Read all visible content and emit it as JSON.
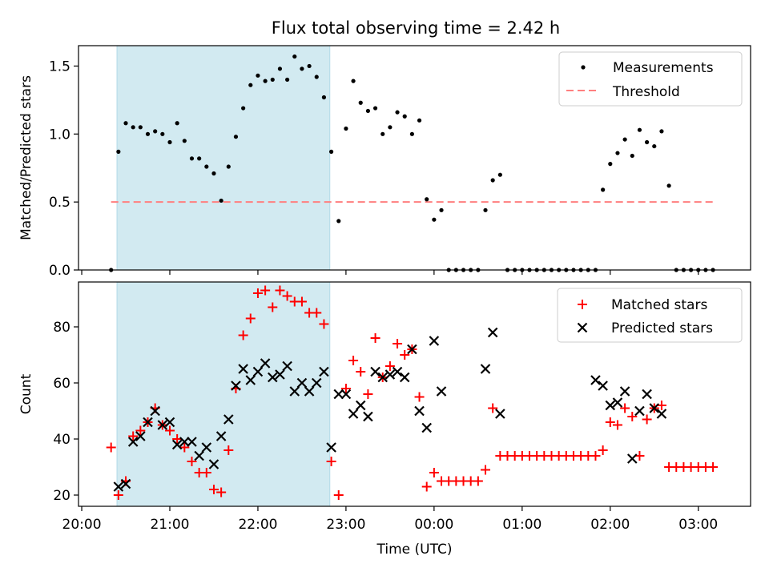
{
  "title": "Flux total observing time = 2.42 h",
  "xlabel": "Time (UTC)",
  "x_ticks": [
    "20:00",
    "21:00",
    "22:00",
    "23:00",
    "00:00",
    "01:00",
    "02:00",
    "03:00"
  ],
  "shaded_interval": {
    "start": "20:24",
    "end": "22:49",
    "color": "#add8e6"
  },
  "colors": {
    "measurements": "#000000",
    "threshold": "#ff7f7f",
    "matched": "#ff0000",
    "predicted": "#000000"
  },
  "chart_data": [
    {
      "type": "scatter",
      "ylabel": "Matched/Predicted stars",
      "ylim": [
        0,
        1.65
      ],
      "y_ticks": [
        "0.0",
        "0.5",
        "1.0",
        "1.5"
      ],
      "legend_position": "top-right",
      "series": [
        {
          "name": "Measurements",
          "x": [
            "20:20",
            "20:25",
            "20:30",
            "20:35",
            "20:40",
            "20:45",
            "20:50",
            "20:55",
            "21:00",
            "21:05",
            "21:10",
            "21:15",
            "21:20",
            "21:25",
            "21:30",
            "21:35",
            "21:40",
            "21:45",
            "21:50",
            "21:55",
            "22:00",
            "22:05",
            "22:10",
            "22:15",
            "22:20",
            "22:25",
            "22:30",
            "22:35",
            "22:40",
            "22:45",
            "22:50",
            "22:55",
            "23:00",
            "23:05",
            "23:10",
            "23:15",
            "23:20",
            "23:25",
            "23:30",
            "23:35",
            "23:40",
            "23:45",
            "23:50",
            "23:55",
            "00:00",
            "00:05",
            "00:10",
            "00:15",
            "00:20",
            "00:25",
            "00:30",
            "00:35",
            "00:40",
            "00:45",
            "00:50",
            "00:55",
            "01:00",
            "01:05",
            "01:10",
            "01:15",
            "01:20",
            "01:25",
            "01:30",
            "01:35",
            "01:40",
            "01:45",
            "01:50",
            "01:55",
            "02:00",
            "02:05",
            "02:10",
            "02:15",
            "02:20",
            "02:25",
            "02:30",
            "02:35",
            "02:40",
            "02:45",
            "02:50",
            "02:55",
            "03:00",
            "03:05",
            "03:10"
          ],
          "y": [
            0.0,
            0.87,
            1.08,
            1.05,
            1.05,
            1.0,
            1.02,
            1.0,
            0.94,
            1.08,
            0.95,
            0.82,
            0.82,
            0.76,
            0.71,
            0.51,
            0.76,
            0.98,
            1.19,
            1.36,
            1.43,
            1.39,
            1.4,
            1.48,
            1.4,
            1.57,
            1.48,
            1.5,
            1.42,
            1.27,
            0.87,
            0.36,
            1.04,
            1.39,
            1.23,
            1.17,
            1.19,
            1.0,
            1.05,
            1.16,
            1.13,
            1.0,
            1.1,
            0.52,
            0.37,
            0.44,
            0.0,
            0.0,
            0.0,
            0.0,
            0.0,
            0.44,
            0.66,
            0.7,
            0.0,
            0.0,
            0.0,
            0.0,
            0.0,
            0.0,
            0.0,
            0.0,
            0.0,
            0.0,
            0.0,
            0.0,
            0.0,
            0.59,
            0.78,
            0.86,
            0.96,
            0.84,
            1.03,
            0.94,
            0.91,
            1.02,
            0.62,
            0.0,
            0.0,
            0.0,
            0.0,
            0.0,
            0.0
          ]
        },
        {
          "name": "Threshold",
          "style": "dashed",
          "x": [
            "20:20",
            "03:10"
          ],
          "y": [
            0.5,
            0.5
          ]
        }
      ]
    },
    {
      "type": "scatter",
      "ylabel": "Count",
      "ylim": [
        16,
        96
      ],
      "y_ticks": [
        "20",
        "40",
        "60",
        "80"
      ],
      "legend_position": "top-right",
      "series": [
        {
          "name": "Matched stars",
          "marker": "+",
          "x": [
            "20:20",
            "20:25",
            "20:30",
            "20:35",
            "20:40",
            "20:45",
            "20:50",
            "20:55",
            "21:00",
            "21:05",
            "21:10",
            "21:15",
            "21:20",
            "21:25",
            "21:30",
            "21:35",
            "21:40",
            "21:45",
            "21:50",
            "21:55",
            "22:00",
            "22:05",
            "22:10",
            "22:15",
            "22:20",
            "22:25",
            "22:30",
            "22:35",
            "22:40",
            "22:45",
            "22:50",
            "22:55",
            "23:00",
            "23:05",
            "23:10",
            "23:15",
            "23:20",
            "23:25",
            "23:30",
            "23:35",
            "23:40",
            "23:45",
            "23:50",
            "23:55",
            "00:00",
            "00:05",
            "00:10",
            "00:15",
            "00:20",
            "00:25",
            "00:30",
            "00:35",
            "00:40",
            "00:45",
            "00:50",
            "00:55",
            "01:00",
            "01:05",
            "01:10",
            "01:15",
            "01:20",
            "01:25",
            "01:30",
            "01:35",
            "01:40",
            "01:45",
            "01:50",
            "01:55",
            "02:00",
            "02:05",
            "02:10",
            "02:15",
            "02:20",
            "02:25",
            "02:30",
            "02:35",
            "02:40",
            "02:45",
            "02:50",
            "02:55",
            "03:00",
            "03:05",
            "03:10"
          ],
          "y": [
            37,
            20,
            25,
            41,
            43,
            46,
            51,
            45,
            43,
            40,
            37,
            32,
            28,
            28,
            22,
            21,
            36,
            58,
            77,
            83,
            92,
            93,
            87,
            93,
            91,
            89,
            89,
            85,
            85,
            81,
            32,
            20,
            58,
            68,
            64,
            56,
            76,
            62,
            66,
            74,
            70,
            72,
            55,
            23,
            28,
            25,
            25,
            25,
            25,
            25,
            25,
            29,
            51,
            34,
            34,
            34,
            34,
            34,
            34,
            34,
            34,
            34,
            34,
            34,
            34,
            34,
            34,
            36,
            46,
            45,
            51,
            48,
            34,
            47,
            51,
            52,
            30,
            30,
            30,
            30,
            30,
            30,
            30
          ]
        },
        {
          "name": "Predicted stars",
          "marker": "x",
          "x": [
            "20:25",
            "20:30",
            "20:35",
            "20:40",
            "20:45",
            "20:50",
            "20:55",
            "21:00",
            "21:05",
            "21:10",
            "21:15",
            "21:20",
            "21:25",
            "21:30",
            "21:35",
            "21:40",
            "21:45",
            "21:50",
            "21:55",
            "22:00",
            "22:05",
            "22:10",
            "22:15",
            "22:20",
            "22:25",
            "22:30",
            "22:35",
            "22:40",
            "22:45",
            "22:50",
            "22:55",
            "23:00",
            "23:05",
            "23:10",
            "23:15",
            "23:20",
            "23:25",
            "23:30",
            "23:35",
            "23:40",
            "23:45",
            "23:50",
            "23:55",
            "00:00",
            "00:05",
            "00:35",
            "00:40",
            "00:45",
            "01:50",
            "01:55",
            "02:00",
            "02:05",
            "02:10",
            "02:15",
            "02:20",
            "02:25",
            "02:30",
            "02:35"
          ],
          "y": [
            23,
            24,
            39,
            41,
            46,
            50,
            45,
            46,
            38,
            39,
            39,
            34,
            37,
            31,
            41,
            47,
            59,
            65,
            61,
            64,
            67,
            62,
            63,
            66,
            57,
            60,
            57,
            60,
            64,
            37,
            56,
            56,
            49,
            52,
            48,
            64,
            62,
            63,
            64,
            62,
            72,
            50,
            44,
            75,
            57,
            65,
            78,
            49,
            61,
            59,
            52,
            53,
            57,
            33,
            50,
            56,
            51,
            49
          ]
        }
      ]
    }
  ]
}
